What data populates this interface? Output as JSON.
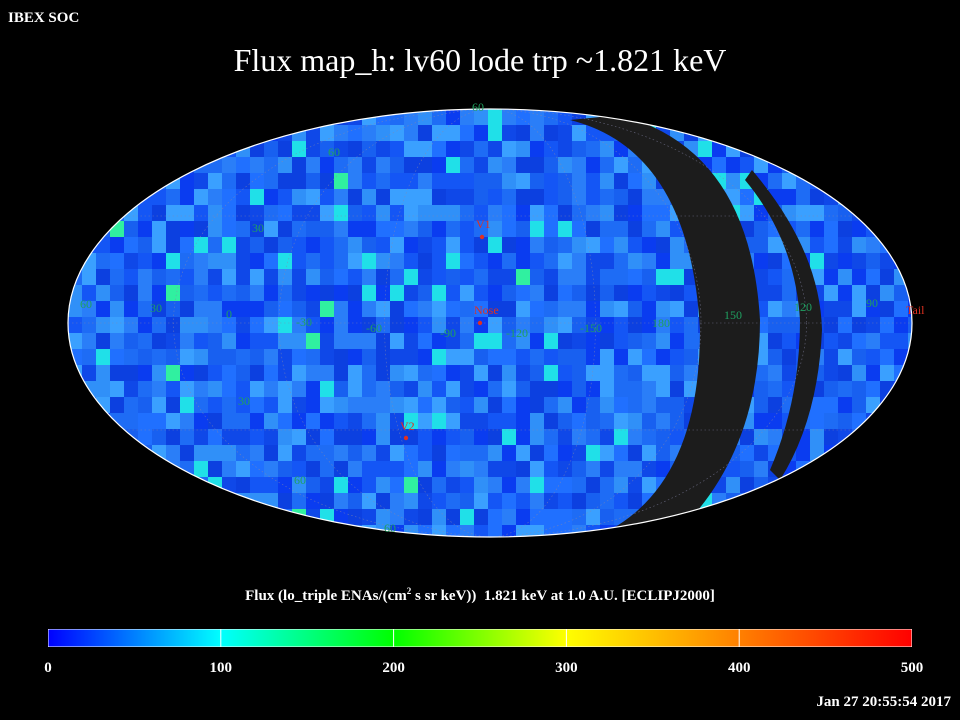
{
  "header": {
    "source": "IBEX SOC",
    "title": "Flux   map_h: lv60 lode trp ~1.821 keV"
  },
  "map": {
    "projection": "aitoff",
    "latitude_labels": [
      "60",
      "60",
      "30",
      "30",
      "60",
      "60"
    ],
    "longitude_labels": [
      "60",
      "30",
      "0",
      "-30",
      "-60",
      "-90",
      "-120",
      "-150",
      "180",
      "150",
      "120",
      "90"
    ],
    "markers": [
      {
        "label": "V1",
        "color": "#e03020"
      },
      {
        "label": "Nose",
        "color": "#e03020"
      },
      {
        "label": "V2",
        "color": "#e03020"
      },
      {
        "label": "Tail",
        "color": "#e03020"
      }
    ],
    "nodata_color": "#1c1c1c"
  },
  "colorbar": {
    "label_main": "Flux (lo_triple ENAs/(cm",
    "label_sup": "2",
    "label_rest": " s sr keV))  1.821 keV at 1.0 A.U. [ECLIPJ2000]",
    "ticks": [
      "0",
      "100",
      "200",
      "300",
      "400",
      "500"
    ],
    "range": [
      0,
      500
    ],
    "colors": [
      "#0000ff",
      "#00ffff",
      "#00ff00",
      "#ffff00",
      "#ff0000"
    ]
  },
  "footer": {
    "timestamp": "Jan 27 20:55:54 2017"
  }
}
